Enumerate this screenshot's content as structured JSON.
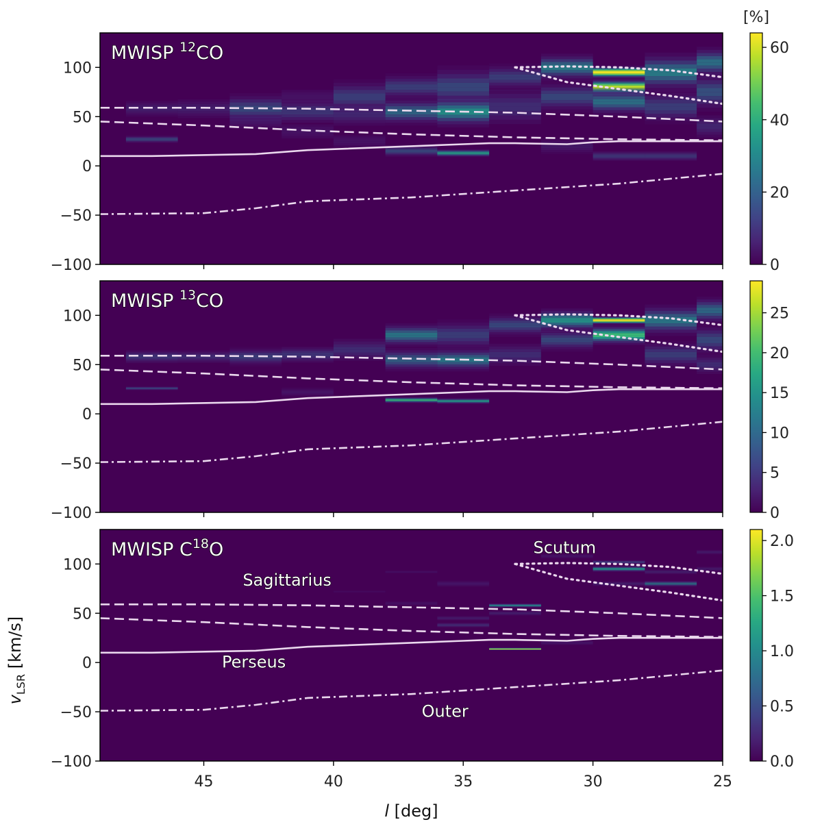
{
  "chart_data": {
    "type": "heatmap",
    "x_label": "l [deg]",
    "y_label": "vLSR [km/s]",
    "xlim": [
      49,
      25
    ],
    "ylim": [
      -100,
      135
    ],
    "x_ticks": [
      45,
      40,
      35,
      30,
      25
    ],
    "y_ticks": [
      100,
      50,
      0,
      -50,
      -100
    ],
    "colormap": "viridis",
    "colorbar_unit": "[%]",
    "bin_width_deg": 2,
    "panels": [
      {
        "title_pre": "MWISP ",
        "title_sup_pre": "",
        "title_sup": "12",
        "title_post": "CO",
        "vmax": 64,
        "colorbar_ticks": [
          "0",
          "20",
          "40",
          "60"
        ],
        "colorbar_values": [
          0,
          20,
          40,
          60
        ],
        "show_arm_labels": false,
        "features": [
          {
            "l": 47,
            "v": 27,
            "w": 4,
            "val": 22
          },
          {
            "l": 47,
            "v": 58,
            "w": 10,
            "val": 12
          },
          {
            "l": 45,
            "v": 58,
            "w": 12,
            "val": 12
          },
          {
            "l": 43,
            "v": 58,
            "w": 16,
            "val": 22
          },
          {
            "l": 43,
            "v": 45,
            "w": 12,
            "val": 8
          },
          {
            "l": 41,
            "v": 55,
            "w": 14,
            "val": 18
          },
          {
            "l": 41,
            "v": 70,
            "w": 12,
            "val": 8
          },
          {
            "l": 41,
            "v": 35,
            "w": 12,
            "val": 8
          },
          {
            "l": 39,
            "v": 70,
            "w": 18,
            "val": 20
          },
          {
            "l": 39,
            "v": 52,
            "w": 14,
            "val": 14
          },
          {
            "l": 39,
            "v": 25,
            "w": 10,
            "val": 8
          },
          {
            "l": 37,
            "v": 80,
            "w": 14,
            "val": 20
          },
          {
            "l": 37,
            "v": 55,
            "w": 14,
            "val": 28
          },
          {
            "l": 37,
            "v": 15,
            "w": 6,
            "val": 22
          },
          {
            "l": 35,
            "v": 80,
            "w": 22,
            "val": 22
          },
          {
            "l": 35,
            "v": 55,
            "w": 16,
            "val": 35
          },
          {
            "l": 35,
            "v": 13,
            "w": 4,
            "val": 38
          },
          {
            "l": 33,
            "v": 90,
            "w": 14,
            "val": 20
          },
          {
            "l": 33,
            "v": 60,
            "w": 22,
            "val": 16
          },
          {
            "l": 31,
            "v": 100,
            "w": 14,
            "val": 32
          },
          {
            "l": 31,
            "v": 70,
            "w": 16,
            "val": 22
          },
          {
            "l": 31,
            "v": 20,
            "w": 10,
            "val": 10
          },
          {
            "l": 29,
            "v": 95,
            "w": 6,
            "val": 64
          },
          {
            "l": 29,
            "v": 80,
            "w": 8,
            "val": 58
          },
          {
            "l": 29,
            "v": 65,
            "w": 14,
            "val": 30
          },
          {
            "l": 29,
            "v": 10,
            "w": 6,
            "val": 18
          },
          {
            "l": 27,
            "v": 95,
            "w": 20,
            "val": 32
          },
          {
            "l": 27,
            "v": 60,
            "w": 18,
            "val": 20
          },
          {
            "l": 27,
            "v": 10,
            "w": 6,
            "val": 18
          },
          {
            "l": 25,
            "v": 105,
            "w": 16,
            "val": 30
          },
          {
            "l": 25,
            "v": 75,
            "w": 20,
            "val": 24
          },
          {
            "l": 25,
            "v": 40,
            "w": 14,
            "val": 14
          }
        ]
      },
      {
        "title_pre": "MWISP ",
        "title_sup_pre": "",
        "title_sup": "13",
        "title_post": "CO",
        "vmax": 29,
        "colorbar_ticks": [
          "0",
          "5",
          "10",
          "15",
          "20",
          "25"
        ],
        "colorbar_values": [
          0,
          5,
          10,
          15,
          20,
          25
        ],
        "show_arm_labels": false,
        "features": [
          {
            "l": 47,
            "v": 26,
            "w": 2,
            "val": 9
          },
          {
            "l": 47,
            "v": 58,
            "w": 8,
            "val": 8
          },
          {
            "l": 45,
            "v": 58,
            "w": 8,
            "val": 7
          },
          {
            "l": 43,
            "v": 58,
            "w": 10,
            "val": 9
          },
          {
            "l": 41,
            "v": 60,
            "w": 10,
            "val": 8
          },
          {
            "l": 41,
            "v": 22,
            "w": 6,
            "val": 4
          },
          {
            "l": 39,
            "v": 65,
            "w": 14,
            "val": 7
          },
          {
            "l": 37,
            "v": 80,
            "w": 12,
            "val": 14
          },
          {
            "l": 37,
            "v": 55,
            "w": 12,
            "val": 12
          },
          {
            "l": 37,
            "v": 14,
            "w": 3,
            "val": 20
          },
          {
            "l": 35,
            "v": 80,
            "w": 16,
            "val": 9
          },
          {
            "l": 35,
            "v": 55,
            "w": 12,
            "val": 14
          },
          {
            "l": 35,
            "v": 13,
            "w": 3,
            "val": 17
          },
          {
            "l": 33,
            "v": 90,
            "w": 12,
            "val": 10
          },
          {
            "l": 33,
            "v": 60,
            "w": 14,
            "val": 7
          },
          {
            "l": 31,
            "v": 95,
            "w": 12,
            "val": 16
          },
          {
            "l": 31,
            "v": 75,
            "w": 12,
            "val": 10
          },
          {
            "l": 29,
            "v": 95,
            "w": 4,
            "val": 29
          },
          {
            "l": 29,
            "v": 80,
            "w": 10,
            "val": 20
          },
          {
            "l": 27,
            "v": 95,
            "w": 16,
            "val": 14
          },
          {
            "l": 27,
            "v": 60,
            "w": 14,
            "val": 9
          },
          {
            "l": 25,
            "v": 105,
            "w": 14,
            "val": 13
          },
          {
            "l": 25,
            "v": 75,
            "w": 16,
            "val": 10
          },
          {
            "l": 25,
            "v": 50,
            "w": 12,
            "val": 7
          }
        ]
      },
      {
        "title_pre": "MWISP C",
        "title_sup_pre": "",
        "title_sup": "18",
        "title_post": "O",
        "vmax": 2.1,
        "colorbar_ticks": [
          "0.0",
          "0.5",
          "1.0",
          "1.5",
          "2.0"
        ],
        "colorbar_values": [
          0,
          0.5,
          1.0,
          1.5,
          2.0
        ],
        "show_arm_labels": true,
        "features": [
          {
            "l": 39,
            "v": 72,
            "w": 2,
            "val": 0.15
          },
          {
            "l": 37,
            "v": 92,
            "w": 2,
            "val": 0.2
          },
          {
            "l": 37,
            "v": 60,
            "w": 3,
            "val": 0.25
          },
          {
            "l": 35,
            "v": 80,
            "w": 4,
            "val": 0.3
          },
          {
            "l": 35,
            "v": 38,
            "w": 3,
            "val": 0.5
          },
          {
            "l": 35,
            "v": 45,
            "w": 3,
            "val": 0.35
          },
          {
            "l": 33,
            "v": 58,
            "w": 2,
            "val": 1.1
          },
          {
            "l": 33,
            "v": 50,
            "w": 3,
            "val": 0.4
          },
          {
            "l": 33,
            "v": 14,
            "w": 1,
            "val": 2.1
          },
          {
            "l": 31,
            "v": 108,
            "w": 3,
            "val": 0.3
          },
          {
            "l": 31,
            "v": 20,
            "w": 3,
            "val": 0.3
          },
          {
            "l": 29,
            "v": 102,
            "w": 2,
            "val": 0.6
          },
          {
            "l": 29,
            "v": 95,
            "w": 3,
            "val": 1.2
          },
          {
            "l": 29,
            "v": 80,
            "w": 3,
            "val": 0.4
          },
          {
            "l": 27,
            "v": 80,
            "w": 3,
            "val": 1.0
          },
          {
            "l": 27,
            "v": 92,
            "w": 3,
            "val": 0.4
          },
          {
            "l": 25,
            "v": 112,
            "w": 3,
            "val": 0.35
          },
          {
            "l": 25,
            "v": 95,
            "w": 3,
            "val": 0.35
          }
        ]
      }
    ],
    "arm_labels": {
      "sagittarius": "Sagittarius",
      "perseus": "Perseus",
      "outer": "Outer",
      "scutum": "Scutum"
    },
    "arm_label_positions": {
      "sagittarius": {
        "l": 43.5,
        "v": 78
      },
      "perseus": {
        "l": 44.3,
        "v": -5
      },
      "outer": {
        "l": 36.6,
        "v": -55
      },
      "scutum": {
        "l": 32.3,
        "v": 111
      }
    },
    "arm_curves": {
      "sagittarius_near": {
        "style": "dashed",
        "points": [
          [
            49,
            59
          ],
          [
            45,
            59
          ],
          [
            41,
            58
          ],
          [
            37,
            56
          ],
          [
            33,
            54
          ],
          [
            29,
            50
          ],
          [
            25,
            45
          ]
        ]
      },
      "sagittarius_far": {
        "style": "dashed",
        "points": [
          [
            49,
            45
          ],
          [
            45,
            41
          ],
          [
            41,
            36
          ],
          [
            37,
            32
          ],
          [
            33,
            29
          ],
          [
            29,
            27
          ],
          [
            25,
            26
          ]
        ]
      },
      "perseus": {
        "style": "solid",
        "points": [
          [
            49,
            10
          ],
          [
            47,
            10
          ],
          [
            43,
            12
          ],
          [
            41,
            16
          ],
          [
            37,
            20
          ],
          [
            35,
            22
          ],
          [
            34,
            23
          ],
          [
            33,
            23
          ],
          [
            31,
            22
          ],
          [
            30,
            24
          ],
          [
            29,
            25
          ],
          [
            25,
            25
          ]
        ]
      },
      "outer": {
        "style": "dashdot",
        "points": [
          [
            49,
            -49
          ],
          [
            45,
            -48
          ],
          [
            43,
            -43
          ],
          [
            41,
            -36
          ],
          [
            37,
            -32
          ],
          [
            33,
            -25
          ],
          [
            29,
            -18
          ],
          [
            25,
            -8
          ]
        ]
      },
      "scutum_upper": {
        "style": "dotted",
        "points": [
          [
            33,
            100
          ],
          [
            31,
            101
          ],
          [
            29,
            100
          ],
          [
            27,
            97
          ],
          [
            25,
            90
          ]
        ]
      },
      "scutum_lower": {
        "style": "dotted",
        "points": [
          [
            33,
            100
          ],
          [
            31,
            85
          ],
          [
            29,
            78
          ],
          [
            27,
            71
          ],
          [
            25,
            63
          ]
        ]
      }
    }
  }
}
